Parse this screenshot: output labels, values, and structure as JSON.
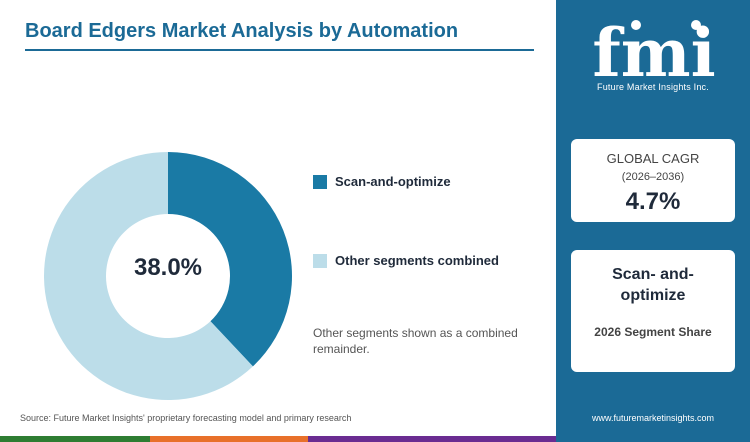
{
  "title": "Board Edgers Market Analysis by Automation",
  "chart_data": {
    "type": "pie",
    "variant": "donut",
    "title": "Board Edgers Market Analysis by Automation",
    "center_label": "38.0%",
    "series": [
      {
        "name": "Scan-and-optimize",
        "value": 38.0,
        "color": "#1a7aa5"
      },
      {
        "name": "Other segments combined",
        "value": 62.0,
        "color": "#bcdde9"
      }
    ],
    "legend_position": "right"
  },
  "note": "Other segments shown as a combined remainder.",
  "source": "Source: Future Market Insights' proprietary forecasting model and primary research",
  "sidebar": {
    "logo_text": "fmi",
    "logo_subtitle": "Future Market Insights Inc.",
    "cagr_card": {
      "label": "GLOBAL CAGR",
      "years": "(2026–2036)",
      "value": "4.7%"
    },
    "segment_card": {
      "name": "Scan- and-optimize",
      "subtitle": "2026 Segment Share"
    },
    "website": "www.futuremarketinsights.com"
  },
  "colors": {
    "brand": "#1b6a96",
    "bottom_bar": [
      "#2e7d32",
      "#e8702a",
      "#6a2c91"
    ]
  }
}
